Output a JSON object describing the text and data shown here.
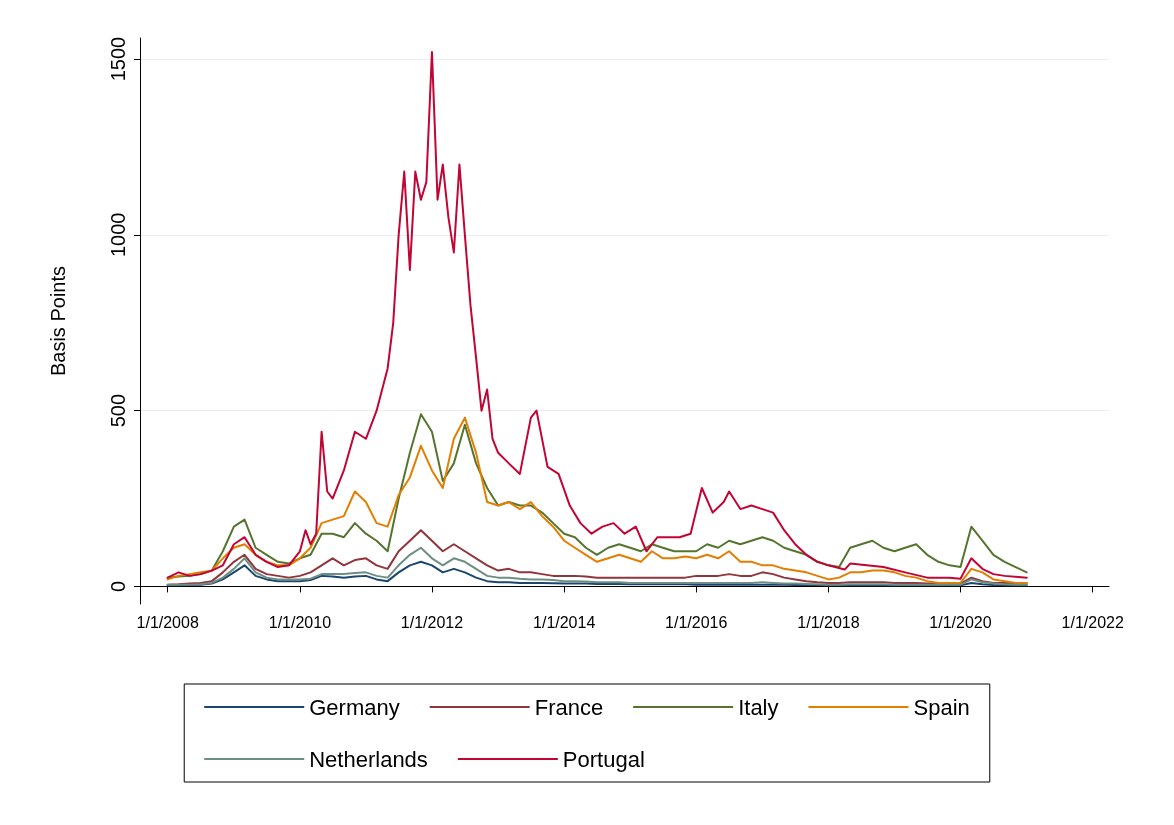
{
  "chart_data": {
    "type": "line",
    "ylabel": "Basis Points",
    "xlim": [
      "2007-08",
      "2022-04"
    ],
    "ylim": [
      -50,
      1560
    ],
    "yticks": [
      0,
      500,
      1000,
      1500
    ],
    "xticks": [
      {
        "value": "2008-01-01",
        "label": "1/1/2008"
      },
      {
        "value": "2010-01-01",
        "label": "1/1/2010"
      },
      {
        "value": "2012-01-01",
        "label": "1/1/2012"
      },
      {
        "value": "2014-01-01",
        "label": "1/1/2014"
      },
      {
        "value": "2016-01-01",
        "label": "1/1/2016"
      },
      {
        "value": "2018-01-01",
        "label": "1/1/2018"
      },
      {
        "value": "2020-01-01",
        "label": "1/1/2020"
      },
      {
        "value": "2022-01-01",
        "label": "1/1/2022"
      }
    ],
    "grid": "y",
    "legend": "bottom",
    "marker": "none",
    "line_style": "solid",
    "x": [
      "2008-01",
      "2008-03",
      "2008-05",
      "2008-07",
      "2008-09",
      "2008-11",
      "2009-01",
      "2009-03",
      "2009-05",
      "2009-07",
      "2009-09",
      "2009-11",
      "2010-01",
      "2010-03",
      "2010-05",
      "2010-07",
      "2010-09",
      "2010-11",
      "2011-01",
      "2011-03",
      "2011-05",
      "2011-07",
      "2011-09",
      "2011-11",
      "2012-01",
      "2012-03",
      "2012-05",
      "2012-07",
      "2012-09",
      "2012-11",
      "2013-01",
      "2013-03",
      "2013-05",
      "2013-07",
      "2013-09",
      "2013-11",
      "2014-01",
      "2014-03",
      "2014-05",
      "2014-07",
      "2014-09",
      "2014-11",
      "2015-01",
      "2015-03",
      "2015-05",
      "2015-07",
      "2015-09",
      "2015-11",
      "2016-01",
      "2016-03",
      "2016-05",
      "2016-07",
      "2016-09",
      "2016-11",
      "2017-01",
      "2017-03",
      "2017-05",
      "2017-07",
      "2017-09",
      "2017-11",
      "2018-01",
      "2018-03",
      "2018-05",
      "2018-07",
      "2018-09",
      "2018-11",
      "2019-01",
      "2019-03",
      "2019-05",
      "2019-07",
      "2019-09",
      "2019-11",
      "2020-01",
      "2020-03",
      "2020-05",
      "2020-07",
      "2020-09",
      "2020-11",
      "2021-01"
    ],
    "series": [
      {
        "name": "Germany",
        "color": "#1a476f",
        "values": [
          3,
          3,
          4,
          5,
          8,
          20,
          40,
          60,
          30,
          20,
          15,
          15,
          15,
          18,
          30,
          28,
          25,
          28,
          30,
          20,
          15,
          40,
          60,
          70,
          60,
          40,
          50,
          40,
          25,
          15,
          12,
          12,
          10,
          10,
          10,
          9,
          8,
          8,
          8,
          7,
          7,
          7,
          6,
          6,
          6,
          6,
          6,
          6,
          5,
          5,
          5,
          5,
          5,
          5,
          5,
          5,
          5,
          4,
          4,
          4,
          3,
          3,
          3,
          3,
          3,
          3,
          3,
          3,
          3,
          3,
          3,
          3,
          3,
          10,
          6,
          4,
          3,
          3,
          3
        ]
      },
      {
        "name": "France",
        "color": "#90353b",
        "values": [
          5,
          6,
          8,
          10,
          15,
          40,
          70,
          90,
          50,
          35,
          30,
          25,
          30,
          40,
          60,
          80,
          60,
          75,
          80,
          60,
          50,
          100,
          130,
          160,
          130,
          100,
          120,
          100,
          80,
          60,
          45,
          50,
          40,
          40,
          35,
          30,
          30,
          30,
          28,
          25,
          25,
          25,
          25,
          25,
          25,
          25,
          25,
          25,
          30,
          30,
          30,
          35,
          30,
          30,
          40,
          35,
          25,
          20,
          15,
          12,
          10,
          10,
          12,
          12,
          12,
          12,
          10,
          10,
          10,
          8,
          8,
          8,
          8,
          25,
          15,
          10,
          10,
          10,
          10
        ]
      },
      {
        "name": "Italy",
        "color": "#55752f",
        "values": [
          25,
          28,
          30,
          35,
          45,
          100,
          170,
          190,
          110,
          90,
          70,
          65,
          80,
          90,
          150,
          150,
          140,
          180,
          150,
          130,
          100,
          250,
          380,
          490,
          440,
          300,
          350,
          460,
          350,
          280,
          230,
          240,
          230,
          230,
          210,
          180,
          150,
          140,
          110,
          90,
          110,
          120,
          110,
          100,
          120,
          110,
          100,
          100,
          100,
          120,
          110,
          130,
          120,
          130,
          140,
          130,
          110,
          100,
          90,
          70,
          60,
          55,
          110,
          120,
          130,
          110,
          100,
          110,
          120,
          90,
          70,
          60,
          55,
          170,
          130,
          90,
          70,
          55,
          40
        ]
      },
      {
        "name": "Spain",
        "color": "#e37e00",
        "values": [
          20,
          30,
          35,
          40,
          45,
          80,
          110,
          120,
          90,
          70,
          60,
          60,
          80,
          110,
          180,
          190,
          200,
          270,
          240,
          180,
          170,
          260,
          310,
          400,
          330,
          280,
          420,
          480,
          380,
          240,
          230,
          240,
          220,
          240,
          200,
          170,
          130,
          110,
          90,
          70,
          80,
          90,
          80,
          70,
          100,
          80,
          80,
          85,
          80,
          90,
          80,
          100,
          70,
          70,
          60,
          60,
          50,
          45,
          40,
          30,
          20,
          25,
          40,
          40,
          45,
          45,
          40,
          30,
          25,
          15,
          10,
          10,
          10,
          50,
          40,
          20,
          15,
          10,
          10
        ]
      },
      {
        "name": "Netherlands",
        "color": "#6e8e84",
        "values": [
          5,
          5,
          5,
          6,
          10,
          25,
          50,
          80,
          40,
          25,
          20,
          20,
          20,
          22,
          35,
          35,
          35,
          38,
          40,
          30,
          25,
          60,
          90,
          110,
          80,
          60,
          80,
          70,
          50,
          30,
          25,
          25,
          22,
          20,
          20,
          18,
          15,
          15,
          14,
          12,
          12,
          12,
          10,
          10,
          10,
          10,
          10,
          10,
          10,
          10,
          10,
          10,
          10,
          10,
          12,
          10,
          8,
          8,
          7,
          6,
          5,
          5,
          6,
          6,
          6,
          6,
          5,
          5,
          5,
          5,
          5,
          5,
          5,
          20,
          12,
          8,
          6,
          5,
          5
        ]
      },
      {
        "name": "Portugal",
        "color": "#c10534",
        "x": [
          "2008-01",
          "2008-03",
          "2008-05",
          "2008-07",
          "2008-09",
          "2008-11",
          "2009-01",
          "2009-03",
          "2009-05",
          "2009-07",
          "2009-09",
          "2009-11",
          "2010-01",
          "2010-02",
          "2010-03",
          "2010-04",
          "2010-05",
          "2010-06",
          "2010-07",
          "2010-09",
          "2010-11",
          "2011-01",
          "2011-03",
          "2011-05",
          "2011-06",
          "2011-07",
          "2011-08",
          "2011-09",
          "2011-10",
          "2011-11",
          "2011-12",
          "2012-01",
          "2012-02",
          "2012-03",
          "2012-04",
          "2012-05",
          "2012-06",
          "2012-07",
          "2012-08",
          "2012-09",
          "2012-10",
          "2012-11",
          "2012-12",
          "2013-01",
          "2013-03",
          "2013-05",
          "2013-07",
          "2013-08",
          "2013-10",
          "2013-12",
          "2014-02",
          "2014-04",
          "2014-06",
          "2014-08",
          "2014-10",
          "2014-12",
          "2015-02",
          "2015-04",
          "2015-06",
          "2015-08",
          "2015-10",
          "2015-12",
          "2016-02",
          "2016-04",
          "2016-06",
          "2016-07",
          "2016-09",
          "2016-11",
          "2017-01",
          "2017-03",
          "2017-05",
          "2017-07",
          "2017-09",
          "2017-11",
          "2018-01",
          "2018-04",
          "2018-05",
          "2018-08",
          "2018-11",
          "2019-03",
          "2019-07",
          "2019-11",
          "2020-01",
          "2020-03",
          "2020-05",
          "2020-07",
          "2020-09",
          "2021-01"
        ],
        "values": [
          25,
          40,
          30,
          35,
          45,
          60,
          120,
          140,
          90,
          70,
          55,
          60,
          100,
          160,
          120,
          150,
          440,
          270,
          250,
          330,
          440,
          420,
          500,
          620,
          750,
          1000,
          1180,
          900,
          1180,
          1100,
          1150,
          1520,
          1100,
          1200,
          1050,
          950,
          1200,
          1000,
          800,
          650,
          500,
          560,
          420,
          380,
          350,
          320,
          480,
          500,
          340,
          320,
          230,
          180,
          150,
          170,
          180,
          150,
          170,
          100,
          140,
          140,
          140,
          150,
          280,
          210,
          240,
          270,
          220,
          230,
          220,
          210,
          160,
          120,
          90,
          70,
          60,
          48,
          65,
          60,
          55,
          40,
          25,
          25,
          22,
          80,
          50,
          35,
          30,
          25
        ]
      }
    ]
  }
}
